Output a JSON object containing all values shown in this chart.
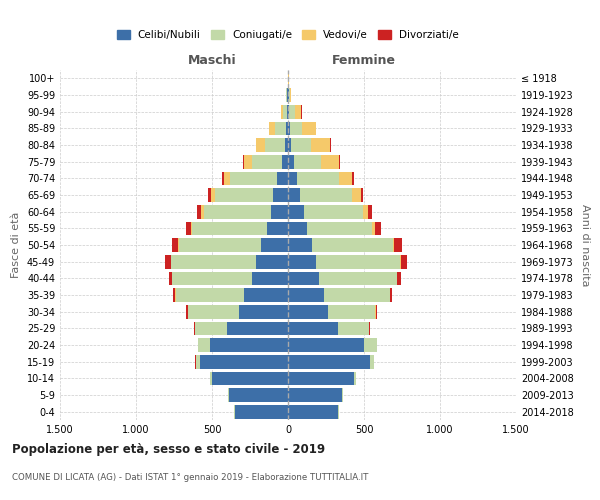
{
  "age_groups": [
    "0-4",
    "5-9",
    "10-14",
    "15-19",
    "20-24",
    "25-29",
    "30-34",
    "35-39",
    "40-44",
    "45-49",
    "50-54",
    "55-59",
    "60-64",
    "65-69",
    "70-74",
    "75-79",
    "80-84",
    "85-89",
    "90-94",
    "95-99",
    "100+"
  ],
  "birth_years": [
    "2014-2018",
    "2009-2013",
    "2004-2008",
    "1999-2003",
    "1994-1998",
    "1989-1993",
    "1984-1988",
    "1979-1983",
    "1974-1978",
    "1969-1973",
    "1964-1968",
    "1959-1963",
    "1954-1958",
    "1949-1953",
    "1944-1948",
    "1939-1943",
    "1934-1938",
    "1929-1933",
    "1924-1928",
    "1919-1923",
    "≤ 1918"
  ],
  "males": {
    "celibi": [
      350,
      390,
      500,
      580,
      510,
      400,
      320,
      290,
      240,
      210,
      175,
      140,
      115,
      100,
      70,
      40,
      18,
      12,
      8,
      4,
      2
    ],
    "coniugati": [
      3,
      5,
      10,
      28,
      80,
      210,
      340,
      450,
      520,
      560,
      545,
      490,
      440,
      380,
      310,
      195,
      135,
      75,
      28,
      8,
      1
    ],
    "vedovi": [
      0,
      0,
      0,
      0,
      0,
      1,
      1,
      2,
      2,
      3,
      5,
      8,
      15,
      28,
      38,
      55,
      55,
      35,
      12,
      2,
      0
    ],
    "divorziati": [
      0,
      0,
      0,
      1,
      2,
      5,
      8,
      15,
      20,
      35,
      40,
      35,
      30,
      18,
      14,
      5,
      3,
      2,
      1,
      0,
      0
    ]
  },
  "females": {
    "nubili": [
      330,
      355,
      435,
      540,
      500,
      330,
      265,
      240,
      205,
      185,
      155,
      125,
      105,
      80,
      60,
      40,
      22,
      12,
      8,
      4,
      2
    ],
    "coniugate": [
      3,
      5,
      10,
      28,
      85,
      205,
      310,
      430,
      510,
      555,
      535,
      430,
      390,
      340,
      275,
      175,
      130,
      78,
      35,
      9,
      1
    ],
    "vedove": [
      0,
      0,
      0,
      0,
      0,
      1,
      1,
      2,
      3,
      5,
      10,
      20,
      30,
      58,
      88,
      118,
      125,
      95,
      45,
      10,
      2
    ],
    "divorziate": [
      0,
      0,
      0,
      1,
      3,
      5,
      10,
      15,
      25,
      40,
      50,
      35,
      30,
      18,
      12,
      8,
      4,
      2,
      1,
      0,
      0
    ]
  },
  "colors": {
    "celibi_nubili": "#3d6fa8",
    "coniugati_e": "#c2d9a8",
    "vedovi_e": "#f5c96a",
    "divorziati_e": "#cc2222"
  },
  "xlim": 1500,
  "title": "Popolazione per età, sesso e stato civile - 2019",
  "subtitle": "COMUNE DI LICATA (AG) - Dati ISTAT 1° gennaio 2019 - Elaborazione TUTTITALIA.IT",
  "xlabel_left": "Maschi",
  "xlabel_right": "Femmine",
  "ylabel_left": "Fasce di età",
  "ylabel_right": "Anni di nascita",
  "legend_labels": [
    "Celibi/Nubili",
    "Coniugati/e",
    "Vedovi/e",
    "Divorziati/e"
  ],
  "grid_color": "#cccccc"
}
